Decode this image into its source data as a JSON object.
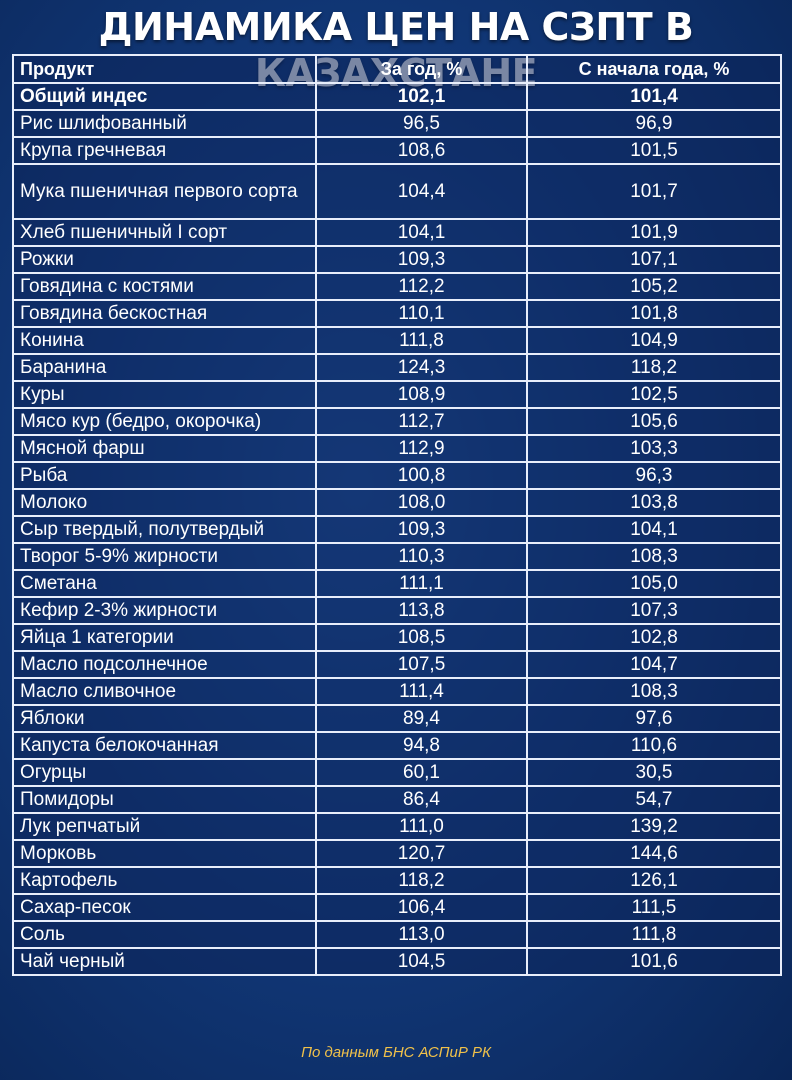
{
  "title": "ДИНАМИКА ЦЕН НА СЗПТ В КАЗАХСТАНЕ",
  "table": {
    "headers": [
      "Продукт",
      "За год, %",
      "С начала года, %"
    ],
    "rows": [
      {
        "product": "Общий индес",
        "year": "102,1",
        "ytd": "101,4",
        "bold": true
      },
      {
        "product": "Рис шлифованный",
        "year": "96,5",
        "ytd": "96,9"
      },
      {
        "product": "Крупа гречневая",
        "year": "108,6",
        "ytd": "101,5"
      },
      {
        "product": "Мука пшеничная первого сорта",
        "year": "104,4",
        "ytd": "101,7",
        "tall": true
      },
      {
        "product": "Хлеб пшеничный I сорт",
        "year": "104,1",
        "ytd": "101,9"
      },
      {
        "product": "Рожки",
        "year": "109,3",
        "ytd": "107,1"
      },
      {
        "product": "Говядина с костями",
        "year": "112,2",
        "ytd": "105,2"
      },
      {
        "product": "Говядина бескостная",
        "year": "110,1",
        "ytd": "101,8"
      },
      {
        "product": "Конина",
        "year": "111,8",
        "ytd": "104,9"
      },
      {
        "product": "Баранина",
        "year": "124,3",
        "ytd": "118,2"
      },
      {
        "product": "Куры",
        "year": "108,9",
        "ytd": "102,5"
      },
      {
        "product": "Мясо кур (бедро, окорочка)",
        "year": "112,7",
        "ytd": "105,6"
      },
      {
        "product": "Мясной фарш",
        "year": "112,9",
        "ytd": "103,3"
      },
      {
        "product": "Рыба",
        "year": "100,8",
        "ytd": "96,3"
      },
      {
        "product": "Молоко",
        "year": "108,0",
        "ytd": "103,8"
      },
      {
        "product": "Сыр твердый, полутвердый",
        "year": "109,3",
        "ytd": "104,1"
      },
      {
        "product": "Творог 5-9% жирности",
        "year": "110,3",
        "ytd": "108,3"
      },
      {
        "product": "Сметана",
        "year": "111,1",
        "ytd": "105,0"
      },
      {
        "product": "Кефир 2-3% жирности",
        "year": "113,8",
        "ytd": "107,3"
      },
      {
        "product": "Яйца 1 категории",
        "year": "108,5",
        "ytd": "102,8"
      },
      {
        "product": "Масло подсолнечное",
        "year": "107,5",
        "ytd": "104,7"
      },
      {
        "product": "Масло сливочное",
        "year": "111,4",
        "ytd": "108,3"
      },
      {
        "product": "Яблоки",
        "year": "89,4",
        "ytd": "97,6"
      },
      {
        "product": "Капуста белокочанная",
        "year": "94,8",
        "ytd": "110,6"
      },
      {
        "product": "Огурцы",
        "year": "60,1",
        "ytd": "30,5"
      },
      {
        "product": "Помидоры",
        "year": "86,4",
        "ytd": "54,7"
      },
      {
        "product": "Лук репчатый",
        "year": "111,0",
        "ytd": "139,2"
      },
      {
        "product": "Морковь",
        "year": "120,7",
        "ytd": "144,6"
      },
      {
        "product": "Картофель",
        "year": "118,2",
        "ytd": "126,1"
      },
      {
        "product": "Сахар-песок",
        "year": "106,4",
        "ytd": "111,5"
      },
      {
        "product": "Соль",
        "year": "113,0",
        "ytd": "111,8"
      },
      {
        "product": "Чай черный",
        "year": "104,5",
        "ytd": "101,6"
      }
    ]
  },
  "source": "По данным БНС АСПиР РК"
}
